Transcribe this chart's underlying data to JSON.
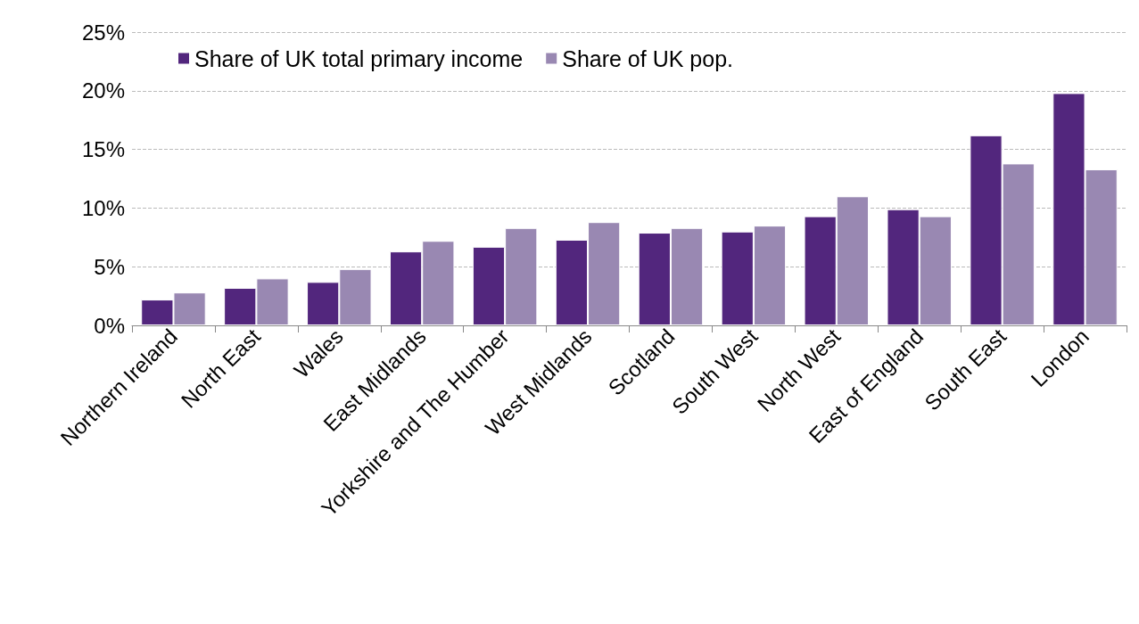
{
  "chart_data": {
    "type": "bar",
    "categories": [
      "Northern Ireland",
      "North East",
      "Wales",
      "East Midlands",
      "Yorkshire and The Humber",
      "West Midlands",
      "Scotland",
      "South West",
      "North West",
      "East of England",
      "South East",
      "London"
    ],
    "series": [
      {
        "name": "Share of UK total primary income",
        "color": "#52267d",
        "values": [
          2.2,
          3.2,
          3.7,
          6.3,
          6.7,
          7.3,
          7.9,
          8.0,
          9.3,
          9.9,
          16.2,
          19.8
        ]
      },
      {
        "name": "Share of UK pop.",
        "color": "#9988b2",
        "values": [
          2.8,
          4.0,
          4.8,
          7.2,
          8.3,
          8.8,
          8.3,
          8.5,
          11.0,
          9.3,
          13.8,
          13.3
        ]
      }
    ],
    "ylim": [
      0,
      25
    ],
    "yticks": [
      {
        "value": 0,
        "label": "0%"
      },
      {
        "value": 5,
        "label": "5%"
      },
      {
        "value": 10,
        "label": "10%"
      },
      {
        "value": 15,
        "label": "15%"
      },
      {
        "value": 20,
        "label": "20%"
      },
      {
        "value": 25,
        "label": "25%"
      }
    ],
    "grid": "y",
    "legend": "top left"
  }
}
